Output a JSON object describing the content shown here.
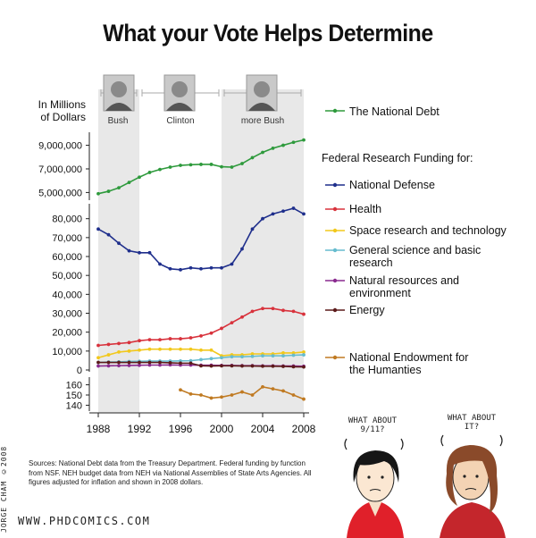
{
  "title": "What your Vote Helps Determine",
  "y_axis_title_line1": "In Millions",
  "y_axis_title_line2": "of Dollars",
  "eras": [
    {
      "label": "Bush",
      "start": 1988,
      "end": 1992
    },
    {
      "label": "Clinton",
      "start": 1992,
      "end": 2000
    },
    {
      "label": "more Bush",
      "start": 2000,
      "end": 2008
    }
  ],
  "legend": {
    "national_debt": "The National Debt",
    "federal_header": "Federal Research Funding for:",
    "defense": "National Defense",
    "health": "Health",
    "space": "Space research and technology",
    "science_1": "General science and basic",
    "science_2": "research",
    "natural_1": "Natural resources and",
    "natural_2": "environment",
    "energy": "Energy",
    "humanities_1": "National Endowment for",
    "humanities_2": "the Humanties"
  },
  "colors": {
    "national_debt": "#2e9a3c",
    "defense": "#1f2f8c",
    "health": "#d8323c",
    "space": "#f2c81c",
    "science": "#66bccf",
    "natural": "#8a2a8f",
    "energy": "#5c1a1a",
    "humanities": "#c07a22",
    "shade": "#e8e8e8"
  },
  "chart_data": {
    "type": "line",
    "x": [
      1988,
      1989,
      1990,
      1991,
      1992,
      1993,
      1994,
      1995,
      1996,
      1997,
      1998,
      1999,
      2000,
      2001,
      2002,
      2003,
      2004,
      2005,
      2006,
      2007,
      2008
    ],
    "x_ticks": [
      "1988",
      "1992",
      "1996",
      "2000",
      "2004",
      "2008"
    ],
    "panels": [
      {
        "name": "debt",
        "yticks": [
          "5,000,000",
          "7,000,000",
          "9,000,000"
        ],
        "ylim": [
          4500000,
          9800000
        ],
        "series": [
          {
            "key": "national_debt",
            "name": "The National Debt",
            "values": [
              4900000,
              5100000,
              5400000,
              5850000,
              6300000,
              6700000,
              6950000,
              7150000,
              7300000,
              7350000,
              7380000,
              7380000,
              7180000,
              7150000,
              7450000,
              7950000,
              8400000,
              8750000,
              9000000,
              9250000,
              9450000
            ]
          }
        ]
      },
      {
        "name": "research",
        "yticks": [
          "0",
          "10,000",
          "20,000",
          "30,000",
          "40,000",
          "50,000",
          "60,000",
          "70,000",
          "80,000"
        ],
        "ylim": [
          0,
          86000
        ],
        "series": [
          {
            "key": "defense",
            "name": "National Defense",
            "values": [
              74500,
              71500,
              67000,
              63000,
              62000,
              62000,
              56000,
              53500,
              53000,
              54000,
              53500,
              54000,
              54000,
              56000,
              64000,
              74500,
              80000,
              82500,
              84000,
              85500,
              82500
            ]
          },
          {
            "key": "health",
            "name": "Health",
            "values": [
              13000,
              13500,
              14000,
              14500,
              15500,
              16000,
              16000,
              16500,
              16500,
              17000,
              18000,
              19500,
              22000,
              25000,
              28000,
              31000,
              32500,
              32500,
              31500,
              31000,
              29500
            ]
          },
          {
            "key": "space",
            "name": "Space research and technology",
            "values": [
              6500,
              8000,
              9500,
              10000,
              10500,
              11000,
              11000,
              11000,
              11000,
              11000,
              10500,
              10500,
              7500,
              8000,
              8000,
              8500,
              8500,
              8500,
              9000,
              9000,
              9500
            ]
          },
          {
            "key": "science",
            "name": "General science and basic research",
            "values": [
              4000,
              4200,
              4300,
              4500,
              4600,
              4700,
              4700,
              4700,
              4800,
              4900,
              5500,
              6000,
              6500,
              7000,
              7000,
              7200,
              7500,
              7500,
              7500,
              7800,
              8000
            ]
          },
          {
            "key": "natural",
            "name": "Natural resources and environment",
            "values": [
              2100,
              2200,
              2300,
              2400,
              2500,
              2600,
              2600,
              2700,
              2600,
              2600,
              2500,
              2500,
              2400,
              2400,
              2300,
              2300,
              2200,
              2200,
              2100,
              2100,
              2000
            ]
          },
          {
            "key": "energy",
            "name": "Energy",
            "values": [
              4000,
              4000,
              4000,
              4000,
              4000,
              4000,
              4000,
              3800,
              3600,
              3600,
              2200,
              2100,
              2200,
              2200,
              2100,
              2100,
              2000,
              2000,
              1900,
              1700,
              1600
            ]
          }
        ]
      },
      {
        "name": "humanities",
        "yticks": [
          "140",
          "150",
          "160"
        ],
        "ylim": [
          136,
          164
        ],
        "series": [
          {
            "key": "humanities",
            "name": "National Endowment for the Humanties",
            "start_index": 8,
            "values": [
              155,
              151,
              150,
              147,
              148,
              150,
              153,
              150,
              158,
              156,
              154,
              150,
              146
            ]
          }
        ]
      }
    ]
  },
  "sources_text": "Sources: National Debt data from the Treasury Department. Federal funding by function from NSF. NEH budget data from NEH via National Assemblies of State Arts Agencies. All figures adjusted for inflation and shown in 2008 dollars.",
  "byline": "JORGE CHAM ©2008",
  "url": "WWW.PHDCOMICS.COM",
  "bubble_left_1": "WHAT ABOUT",
  "bubble_left_2": "9/11?",
  "bubble_right_1": "WHAT ABOUT",
  "bubble_right_2": "IT?"
}
